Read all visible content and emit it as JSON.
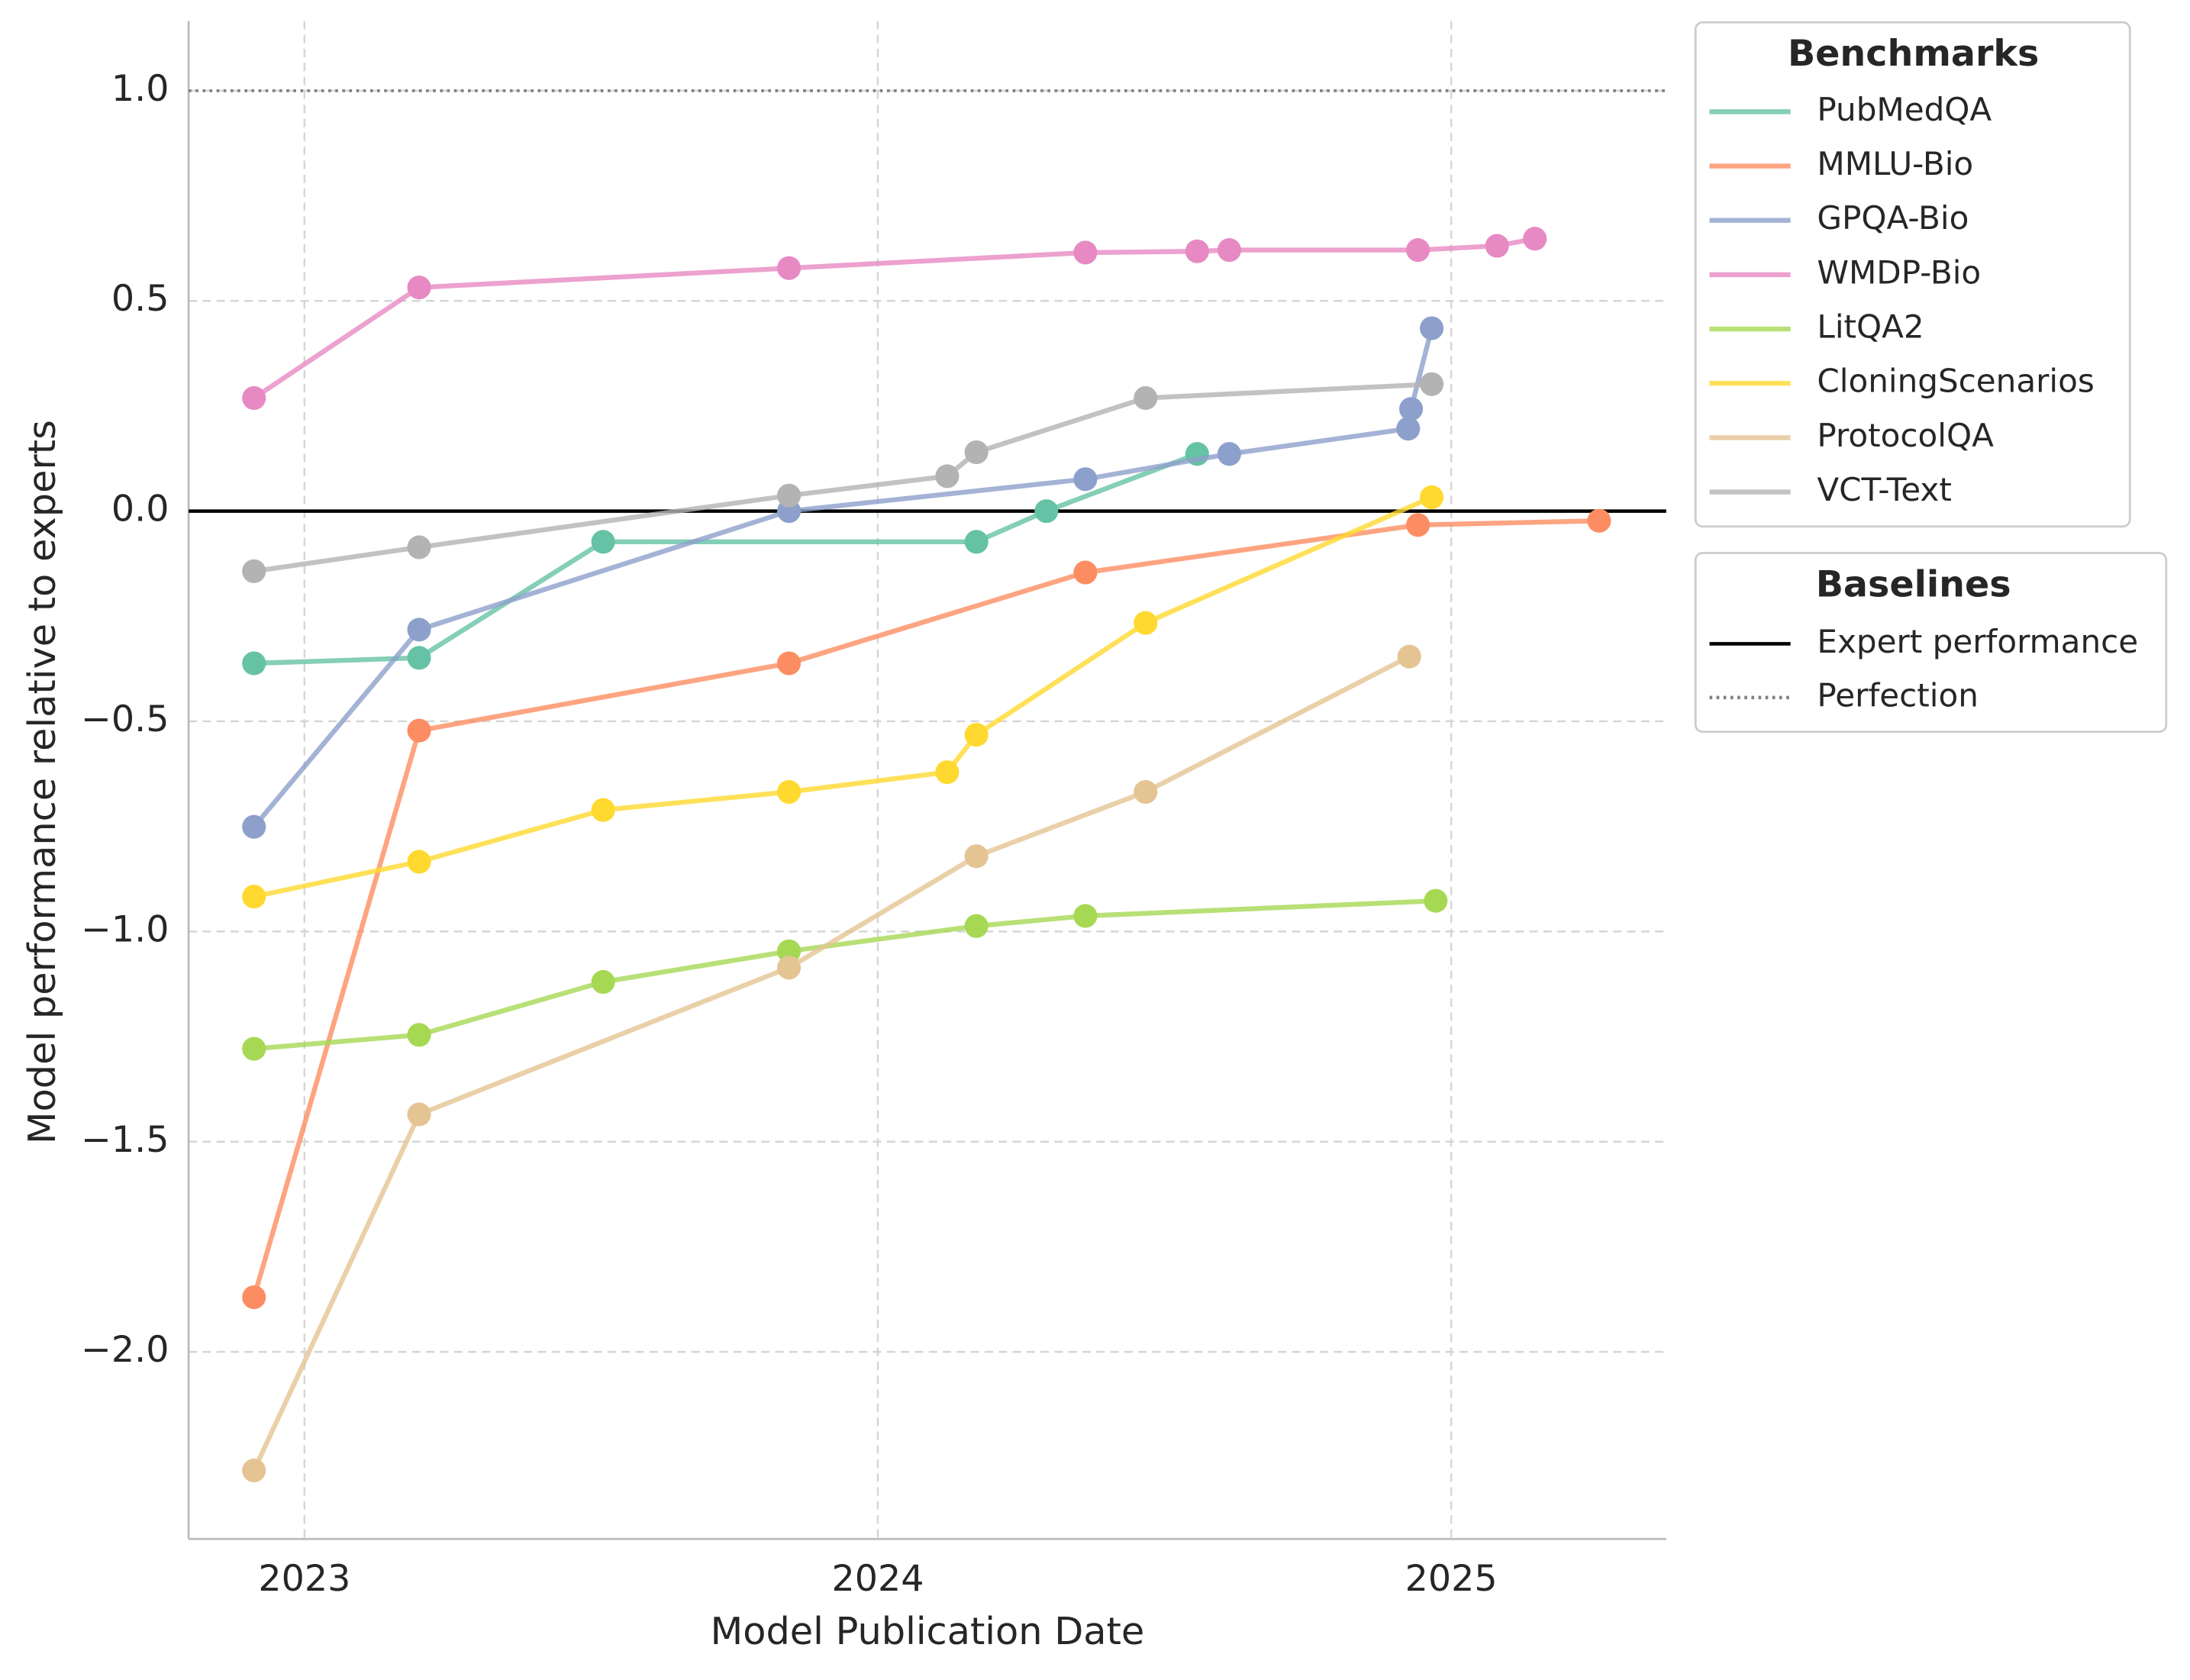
{
  "chart_data": {
    "type": "line",
    "x_label": "Model Publication Date",
    "y_label": "Model performance relative to experts",
    "xlim": [
      2022.798,
      2025.375
    ],
    "xticks": [
      2023,
      2024,
      2025
    ],
    "ylim": [
      -2.445,
      1.166
    ],
    "yticks": [
      {
        "value": -2,
        "label": "−2.0"
      },
      {
        "value": -1.5,
        "label": "−1.5"
      },
      {
        "value": -1,
        "label": "−1.0"
      },
      {
        "value": -0.5,
        "label": "−0.5"
      },
      {
        "value": 0,
        "label": "0.0"
      },
      0.5,
      {
        "value": 1,
        "label": "1.0"
      }
    ],
    "grid": true,
    "legend_title": "Benchmarks",
    "baselines_title": "Baselines",
    "legend_position": "outside right",
    "series": [
      {
        "name": "PubMedQA",
        "color": "#66c2a5",
        "x": [
          2022.912,
          2023.2,
          2023.521,
          2024.172,
          2024.294,
          2024.557
        ],
        "values": [
          -0.362,
          -0.349,
          -0.073,
          -0.073,
          0,
          0.136
        ]
      },
      {
        "name": "MMLU-Bio",
        "color": "#fc8d62",
        "x": [
          2022.912,
          2023.2,
          2023.845,
          2024.362,
          2024.942,
          2025.258
        ],
        "values": [
          -1.87,
          -0.522,
          -0.362,
          -0.146,
          -0.033,
          -0.023
        ]
      },
      {
        "name": "GPQA-Bio",
        "color": "#8da0cb",
        "x": [
          2022.912,
          2023.2,
          2023.845,
          2024.362,
          2024.613,
          2024.925,
          2024.93,
          2024.966
        ],
        "values": [
          -0.751,
          -0.282,
          0,
          0.076,
          0.136,
          0.196,
          0.243,
          0.435
        ]
      },
      {
        "name": "WMDP-Bio",
        "color": "#e78ac3",
        "x": [
          2022.912,
          2023.2,
          2023.845,
          2024.362,
          2024.557,
          2024.613,
          2024.942,
          2025.08,
          2025.146
        ],
        "values": [
          0.269,
          0.532,
          0.578,
          0.615,
          0.618,
          0.621,
          0.621,
          0.631,
          0.648
        ]
      },
      {
        "name": "LitQA2",
        "color": "#a6d854",
        "x": [
          2022.912,
          2023.2,
          2023.521,
          2023.845,
          2024.172,
          2024.362,
          2024.973
        ],
        "values": [
          -1.279,
          -1.246,
          -1.12,
          -1.047,
          -0.987,
          -0.963,
          -0.927
        ]
      },
      {
        "name": "CloningScenarios",
        "color": "#ffd92f",
        "x": [
          2022.912,
          2023.2,
          2023.521,
          2023.845,
          2024.121,
          2024.172,
          2024.467,
          2024.966
        ],
        "values": [
          -0.917,
          -0.834,
          -0.711,
          -0.668,
          -0.621,
          -0.532,
          -0.266,
          0.033
        ]
      },
      {
        "name": "ProtocolQA",
        "color": "#e5c494",
        "x": [
          2022.912,
          2023.2,
          2023.845,
          2024.172,
          2024.467,
          2024.927
        ],
        "values": [
          -2.282,
          -1.435,
          -1.086,
          -0.821,
          -0.668,
          -0.346
        ]
      },
      {
        "name": "VCT-Text",
        "color": "#b3b3b3",
        "x": [
          2022.912,
          2023.2,
          2023.845,
          2024.121,
          2024.172,
          2024.467,
          2024.966
        ],
        "values": [
          -0.143,
          -0.086,
          0.037,
          0.083,
          0.14,
          0.269,
          0.302
        ]
      }
    ],
    "baselines": [
      {
        "name": "Expert performance",
        "value": 0,
        "color": "#000000",
        "style": "solid"
      },
      {
        "name": "Perfection",
        "value": 1,
        "color": "#808080",
        "style": "dotted"
      }
    ]
  }
}
